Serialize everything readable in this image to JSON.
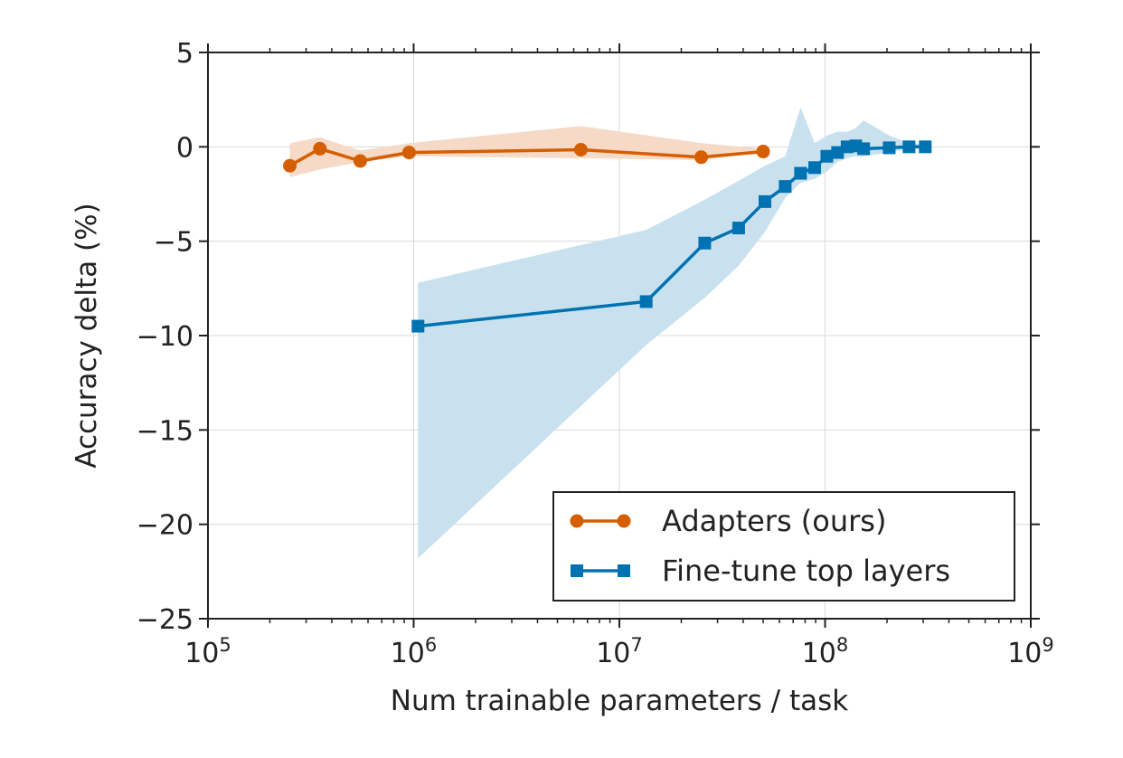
{
  "chart_data": {
    "type": "line",
    "xlabel": "Num trainable parameters / task",
    "ylabel": "Accuracy delta (%)",
    "x_scale": "log",
    "xlim": [
      100000,
      1000000000
    ],
    "ylim": [
      -25,
      5
    ],
    "x_ticks": [
      {
        "value": 100000,
        "base": "10",
        "exp": "5"
      },
      {
        "value": 1000000,
        "base": "10",
        "exp": "6"
      },
      {
        "value": 10000000,
        "base": "10",
        "exp": "7"
      },
      {
        "value": 100000000,
        "base": "10",
        "exp": "8"
      },
      {
        "value": 1000000000,
        "base": "10",
        "exp": "9"
      }
    ],
    "y_ticks": [
      {
        "value": 5,
        "label": "5"
      },
      {
        "value": 0,
        "label": "0"
      },
      {
        "value": -5,
        "label": "−5"
      },
      {
        "value": -10,
        "label": "−10"
      },
      {
        "value": -15,
        "label": "−15"
      },
      {
        "value": -20,
        "label": "−20"
      },
      {
        "value": -25,
        "label": "−25"
      }
    ],
    "grid": true,
    "legend_position": "bottom-right",
    "series": [
      {
        "name": "Adapters (ours)",
        "color": "#d55e00",
        "band_color": "#f6d9c6",
        "marker": "circle",
        "x": [
          250000,
          350000,
          550000,
          950000,
          6500000,
          25000000,
          50000000
        ],
        "y": [
          -1.0,
          -0.1,
          -0.75,
          -0.3,
          -0.15,
          -0.55,
          -0.25
        ],
        "y_low": [
          -1.6,
          -1.2,
          -0.8,
          -0.5,
          -0.6,
          -0.7,
          -0.3
        ],
        "y_high": [
          0.2,
          0.5,
          -0.2,
          0.2,
          1.1,
          0.2,
          -0.1
        ]
      },
      {
        "name": "Fine-tune top layers",
        "color": "#0072b2",
        "band_color": "#c9e1ef",
        "marker": "square",
        "x": [
          1050000,
          13500000,
          26000000,
          38000000,
          51000000,
          64000000,
          76000000,
          89000000,
          102000000,
          115000000,
          128000000,
          141000000,
          154000000,
          205000000,
          256000000,
          307000000
        ],
        "y": [
          -9.5,
          -8.2,
          -5.1,
          -4.3,
          -2.9,
          -2.1,
          -1.4,
          -1.1,
          -0.5,
          -0.3,
          0.0,
          0.05,
          -0.1,
          -0.05,
          0.0,
          0.0
        ],
        "y_low": [
          -21.8,
          -10.5,
          -8.0,
          -6.3,
          -4.5,
          -2.7,
          -1.9,
          -1.7,
          -1.3,
          -0.8,
          -0.6,
          -0.5,
          -0.5,
          -0.3,
          -0.1,
          -0.1
        ],
        "y_high": [
          -7.2,
          -4.4,
          -2.8,
          -1.8,
          -1.0,
          -0.5,
          2.1,
          0.2,
          0.6,
          0.8,
          0.8,
          1.0,
          1.4,
          0.6,
          0.2,
          0.1
        ]
      }
    ]
  }
}
